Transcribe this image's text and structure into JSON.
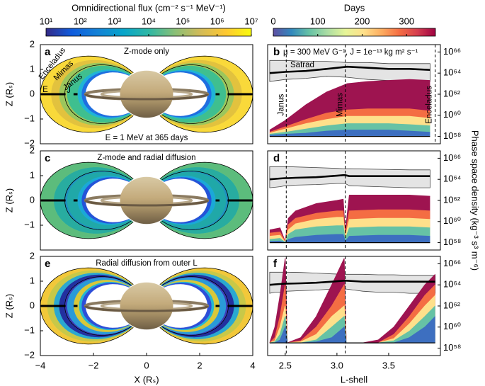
{
  "chart_data": [
    {
      "type": "colorbar",
      "label": "Omnidirectional flux (cm⁻² s⁻¹ MeV⁻¹)",
      "log": true,
      "lim": [
        10,
        10000000
      ],
      "ticks": [
        {
          "value": 10,
          "label": "10¹"
        },
        {
          "value": 100,
          "label": "10²"
        },
        {
          "value": 1000,
          "label": "10³"
        },
        {
          "value": 10000,
          "label": "10⁴"
        },
        {
          "value": 100000,
          "label": "10⁵"
        },
        {
          "value": 1000000,
          "label": "10⁶"
        },
        {
          "value": 10000000,
          "label": "10⁷"
        }
      ],
      "colors": [
        "#352a87",
        "#0f5cdd",
        "#1481d6",
        "#06a4ca",
        "#2eb7a4",
        "#87bf77",
        "#d1bb59",
        "#fec832",
        "#f9fb0e"
      ]
    },
    {
      "type": "colorbar",
      "label": "Days",
      "log": false,
      "lim": [
        0,
        365
      ],
      "ticks": [
        0,
        100,
        200,
        300
      ],
      "colors": [
        "#5e4fa2",
        "#3288bd",
        "#66c2a5",
        "#abdda4",
        "#e6f598",
        "#fee08b",
        "#fdae61",
        "#f46d43",
        "#d53e4f",
        "#9e0142"
      ]
    },
    {
      "type": "flux-map",
      "letter": "a",
      "title": "Z-mode only",
      "note": "E = 1 MeV at 365 days",
      "annotations": [
        "Enceladus",
        "Mimas",
        "Janus",
        "E",
        "J"
      ],
      "xlim": [
        -4,
        4
      ],
      "ylim": [
        -2,
        2
      ],
      "ylabel": "Z (Rₛ)",
      "yticks": [
        {
          "value": -2,
          "label": "−2"
        },
        {
          "value": -1,
          "label": "−1"
        },
        0,
        1,
        2
      ]
    },
    {
      "type": "line",
      "letter": "b",
      "annotation": "μ = 300 MeV G⁻¹, J = 1e⁻¹³ kg m² s⁻¹",
      "log_y": true,
      "xlim": [
        2.33,
        4.0
      ],
      "ylim": [
        2e+57,
        5e+66
      ],
      "yticks": [
        {
          "value": 1e+58,
          "label": "10⁵⁸"
        },
        {
          "value": 1e+60,
          "label": "10⁶⁰"
        },
        {
          "value": 1e+62,
          "label": "10⁶²"
        },
        {
          "value": 1e+64,
          "label": "10⁶⁴"
        },
        {
          "value": 1e+66,
          "label": "10⁶⁶"
        }
      ],
      "moons": [
        {
          "name": "Janus",
          "L": 2.51
        },
        {
          "name": "Mimas",
          "L": 3.08
        },
        {
          "name": "Enceladus",
          "L": 3.95
        }
      ],
      "x": [
        2.35,
        2.5,
        2.7,
        2.9,
        3.1,
        3.3,
        3.5,
        3.7,
        3.9
      ],
      "band": {
        "name": "Satrad",
        "color": "#e4e4e4",
        "upper": [
          1.6e+65,
          1.6e+65,
          1.3e+65,
          1.3e+65,
          1e+65,
          1e+65,
          8e+64,
          8e+64,
          8e+64
        ],
        "lower": [
          1.6e+63,
          2.5e+63,
          3.2e+63,
          5e+63,
          4e+63,
          2.5e+63,
          2e+63,
          1.6e+63,
          1.6e+63
        ]
      },
      "psd": {
        "color": "#000000",
        "values": [
          1e+64,
          1.3e+64,
          1.6e+64,
          2.5e+64,
          4e+64,
          3.2e+64,
          2.5e+64,
          2.5e+64,
          2e+64
        ]
      },
      "initial": {
        "color": "#000000",
        "values": [
          1e+58,
          1e+58,
          1e+58,
          1e+58,
          1e+58,
          1e+58,
          1e+58,
          1e+58,
          1e+58
        ]
      },
      "series": [
        {
          "color": "#9e1450",
          "values": [
            4e+58,
            3.2e+59,
            1e+61,
            1.6e+62,
            1e+63,
            1.6e+63,
            2e+63,
            2.5e+63,
            2e+63
          ]
        },
        {
          "color": "#f46d43",
          "values": [
            2.5e+58,
            8e+58,
            4e+59,
            1.6e+60,
            3.2e+60,
            4e+60,
            4e+60,
            4e+60,
            2.5e+60
          ]
        },
        {
          "color": "#fee08b",
          "values": [
            2e+58,
            5e+58,
            1.6e+59,
            4e+59,
            8e+59,
            8e+59,
            8e+59,
            8e+59,
            5e+59
          ]
        },
        {
          "color": "#66c2a5",
          "values": [
            1.6e+58,
            2.5e+58,
            5e+58,
            1e+59,
            1.6e+59,
            1.6e+59,
            1.6e+59,
            1.3e+59,
            1e+59
          ]
        },
        {
          "color": "#3d6fc0",
          "values": [
            1.3e+58,
            1.6e+58,
            2e+58,
            3.2e+58,
            4e+58,
            4e+58,
            4e+58,
            3.2e+58,
            2.5e+58
          ]
        }
      ]
    },
    {
      "type": "flux-map",
      "letter": "c",
      "title": "Z-mode and radial diffusion",
      "xlim": [
        -4,
        4
      ],
      "ylim": [
        -2,
        2
      ],
      "ylabel": "Z (Rₛ)",
      "yticks": [
        {
          "value": -1,
          "label": "−1"
        },
        0,
        1,
        2
      ]
    },
    {
      "type": "line",
      "letter": "d",
      "log_y": true,
      "ylabel": "Phase space density (kg⁻³ s³ m⁻⁶)",
      "xlim": [
        2.33,
        4.0
      ],
      "ylim": [
        2e+57,
        5e+66
      ],
      "yticks": [
        {
          "value": 1e+58,
          "label": "10⁵⁸"
        },
        {
          "value": 1e+60,
          "label": "10⁶⁰"
        },
        {
          "value": 1e+62,
          "label": "10⁶²"
        },
        {
          "value": 1e+64,
          "label": "10⁶⁴"
        },
        {
          "value": 1e+66,
          "label": "10⁶⁶"
        }
      ],
      "moons": [
        {
          "L": 2.51
        },
        {
          "L": 3.08
        }
      ],
      "x": [
        2.35,
        2.45,
        2.5,
        2.53,
        2.6,
        2.8,
        3.0,
        3.06,
        3.08,
        3.12,
        3.4,
        3.7,
        3.9
      ],
      "band": {
        "color": "#e4e4e4",
        "upper": [
          1.6e+65,
          1.6e+65,
          1.6e+65,
          1.6e+65,
          1.5e+65,
          1.3e+65,
          1.1e+65,
          1e+65,
          1e+65,
          1e+65,
          9e+64,
          8e+64,
          8e+64
        ],
        "lower": [
          1.6e+63,
          2e+63,
          2.5e+63,
          2.5e+63,
          2.8e+63,
          3.2e+63,
          4e+63,
          4e+63,
          4e+63,
          2.5e+63,
          2e+63,
          1.6e+63,
          1.6e+63
        ]
      },
      "psd": {
        "color": "#000000",
        "values": [
          1e+64,
          1.2e+64,
          1.3e+64,
          1.3e+64,
          1.4e+64,
          1.6e+64,
          2.2e+64,
          2.5e+64,
          2.5e+64,
          2e+64,
          2e+64,
          2e+64,
          2e+64
        ]
      },
      "initial": {
        "color": "#000000",
        "values": [
          1e+58,
          1e+58,
          1e+58,
          1e+58,
          1e+58,
          1e+58,
          1e+58,
          1e+58,
          1e+58,
          1e+58,
          1e+58,
          1e+58,
          1e+58
        ]
      },
      "series": [
        {
          "color": "#9e1450",
          "values": [
            1.6e+59,
            2.5e+59,
            1.3e+58,
            2e+60,
            1e+61,
            5e+61,
            1e+62,
            1.3e+62,
            1e+59,
            3.2e+62,
            3.2e+62,
            3.2e+62,
            2.5e+62
          ]
        },
        {
          "color": "#f46d43",
          "values": [
            8e+58,
            1e+59,
            1.2e+58,
            5e+59,
            2e+60,
            6e+60,
            1e+61,
            1e+61,
            5e+58,
            1e+61,
            1.3e+61,
            1.3e+61,
            1e+61
          ]
        },
        {
          "color": "#fee08b",
          "values": [
            4e+58,
            5e+58,
            1.1e+58,
            1.6e+59,
            6e+59,
            1.6e+60,
            2.5e+60,
            2.5e+60,
            3e+58,
            1.6e+60,
            2e+60,
            2e+60,
            1.6e+60
          ]
        },
        {
          "color": "#66c2a5",
          "values": [
            2e+58,
            2.5e+58,
            1.05e+58,
            6e+58,
            1.6e+59,
            3.2e+59,
            4e+59,
            4e+59,
            2e+58,
            2.5e+59,
            3.2e+59,
            3.2e+59,
            2.5e+59
          ]
        },
        {
          "color": "#3d6fc0",
          "values": [
            1.3e+58,
            1.4e+58,
            1e+58,
            2e+58,
            3.2e+58,
            5e+58,
            6e+58,
            6e+58,
            1.3e+58,
            4e+58,
            5e+58,
            5e+58,
            4e+58
          ]
        }
      ]
    },
    {
      "type": "flux-map",
      "letter": "e",
      "title": "Radial diffusion from outer L",
      "xlim": [
        -4,
        4
      ],
      "ylim": [
        -2,
        2
      ],
      "ylabel": "Z (Rₛ)",
      "xlabel": "X (Rₛ)",
      "xticks": [
        {
          "value": -4,
          "label": "−4"
        },
        {
          "value": -2,
          "label": "−2"
        },
        0,
        2,
        4
      ],
      "yticks": [
        {
          "value": -2,
          "label": "−2"
        },
        {
          "value": -1,
          "label": "−1"
        },
        0,
        1,
        2
      ]
    },
    {
      "type": "line",
      "letter": "f",
      "log_y": true,
      "xlabel": "L-shell",
      "xlim": [
        2.33,
        4.0
      ],
      "ylim": [
        2e+57,
        5e+66
      ],
      "xticks": [
        2.5,
        {
          "value": 3,
          "label": "3.0"
        },
        3.5
      ],
      "yticks": [
        {
          "value": 1e+58,
          "label": "10⁵⁸"
        },
        {
          "value": 1e+60,
          "label": "10⁶⁰"
        },
        {
          "value": 1e+62,
          "label": "10⁶²"
        },
        {
          "value": 1e+64,
          "label": "10⁶⁴"
        },
        {
          "value": 1e+66,
          "label": "10⁶⁶"
        }
      ],
      "moons": [
        {
          "L": 2.51
        },
        {
          "L": 3.08
        }
      ],
      "x": [
        2.35,
        2.4,
        2.45,
        2.5,
        2.52,
        2.65,
        2.8,
        2.95,
        3.07,
        3.09,
        3.25,
        3.4,
        3.55,
        3.7,
        3.85,
        3.95
      ],
      "band": {
        "color": "#e4e4e4",
        "upper": [
          1.6e+65,
          1.6e+65,
          1.6e+65,
          1.6e+65,
          1.6e+65,
          1.5e+65,
          1.3e+65,
          1.1e+65,
          1e+65,
          1e+65,
          1e+65,
          9e+64,
          9e+64,
          8e+64,
          8e+64,
          8e+64
        ],
        "lower": [
          1.6e+63,
          2e+63,
          2e+63,
          2.5e+63,
          2.5e+63,
          2.8e+63,
          3.2e+63,
          4e+63,
          4e+63,
          4e+63,
          2.5e+63,
          2e+63,
          2e+63,
          1.6e+63,
          1.6e+63,
          1.6e+63
        ]
      },
      "psd": {
        "color": "#000000",
        "values": [
          1e+64,
          1.1e+64,
          1.2e+64,
          1.3e+64,
          1.3e+64,
          1.4e+64,
          1.6e+64,
          2e+64,
          2.5e+64,
          2.5e+64,
          2e+64,
          2e+64,
          2e+64,
          2e+64,
          2e+64,
          2e+64
        ]
      },
      "initial": {
        "color": "#000000",
        "values": [
          3.2e+58,
          3.2e+58,
          3.2e+58,
          3.2e+58,
          3.2e+58,
          3.2e+58,
          3.2e+58,
          3.2e+58,
          3.2e+58,
          3.2e+58,
          3.2e+58,
          3.2e+58,
          3.2e+58,
          3.2e+58,
          3.2e+58,
          3.2e+58
        ]
      },
      "series": [
        {
          "color": "#9e1450",
          "values": [
            3.2e+58,
            1e+60,
            1e+63,
            3.2e+66,
            3.2e+58,
            1e+59,
            1e+61,
            1e+64,
            3.2e+66,
            3.2e+58,
            3.2e+58,
            6e+58,
            1e+60,
            1e+62,
            1e+64,
            1e+65
          ]
        },
        {
          "color": "#f46d43",
          "values": [
            3.2e+58,
            1e+59,
            1e+61,
            1e+64,
            3.2e+58,
            5e+58,
            1e+60,
            1e+62,
            1e+64,
            3.2e+58,
            3.2e+58,
            3.2e+58,
            2e+59,
            1e+61,
            1e+63,
            1e+64
          ]
        },
        {
          "color": "#fee08b",
          "values": [
            3.2e+58,
            5e+58,
            1e+60,
            1e+62,
            3.2e+58,
            4e+58,
            2e+59,
            1e+61,
            1e+62,
            3.2e+58,
            3.2e+58,
            3.2e+58,
            8e+58,
            2e+60,
            1e+62,
            1e+63
          ]
        },
        {
          "color": "#66c2a5",
          "values": [
            3.2e+58,
            4e+58,
            2e+59,
            1e+61,
            3.2e+58,
            3.2e+58,
            6e+58,
            1e+60,
            1e+61,
            3.2e+58,
            3.2e+58,
            3.2e+58,
            5e+58,
            4e+59,
            1e+61,
            1e+62
          ]
        },
        {
          "color": "#3d6fc0",
          "values": [
            3.2e+58,
            3.2e+58,
            6e+58,
            1e+60,
            3.2e+58,
            3.2e+58,
            4e+58,
            1e+59,
            1e+60,
            3.2e+58,
            3.2e+58,
            3.2e+58,
            3.2e+58,
            1e+59,
            1e+60,
            1e+61
          ]
        }
      ]
    }
  ]
}
